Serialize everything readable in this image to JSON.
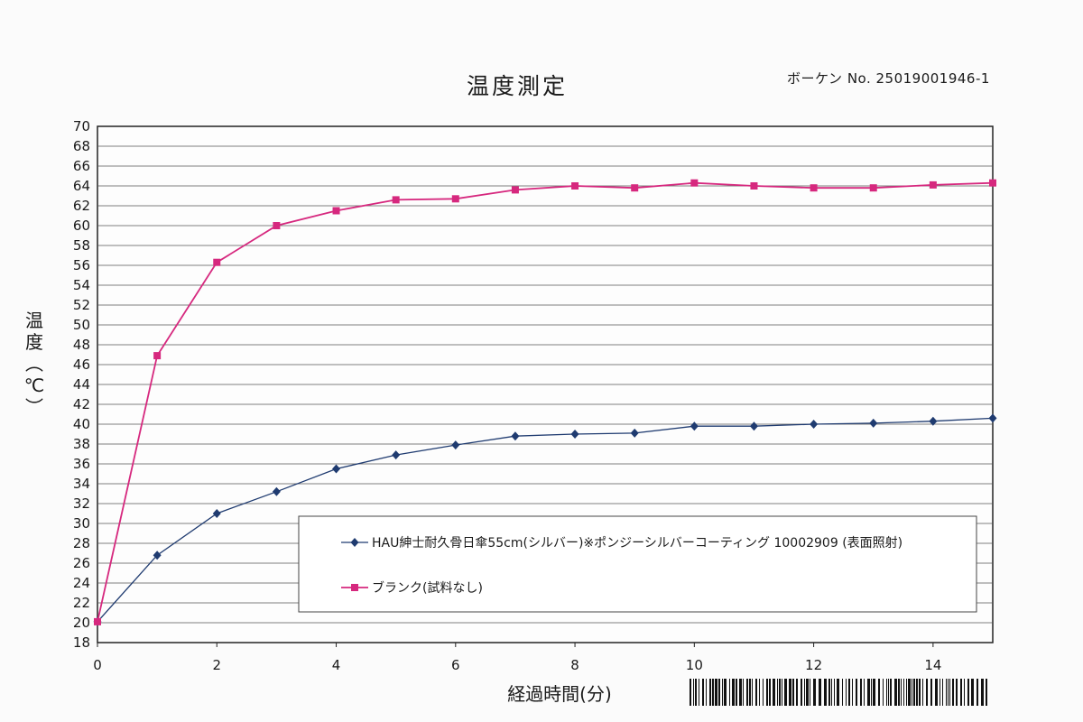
{
  "header": {
    "title": "温度測定",
    "report_no": "ボーケン No.  25019001946-1"
  },
  "chart_data": {
    "type": "line",
    "title": "温度測定",
    "xlabel": "経過時間(分)",
    "ylabel": "温度(℃)",
    "xlim": [
      0,
      15
    ],
    "ylim": [
      18,
      70
    ],
    "x_ticks": [
      0,
      2,
      4,
      6,
      8,
      10,
      12,
      14
    ],
    "y_ticks": [
      18,
      20,
      22,
      24,
      26,
      28,
      30,
      32,
      34,
      36,
      38,
      40,
      42,
      44,
      46,
      48,
      50,
      52,
      54,
      56,
      58,
      60,
      62,
      64,
      66,
      68,
      70
    ],
    "grid": "horizontal",
    "legend_placement": "bottom-right inside",
    "x": [
      0,
      1,
      2,
      3,
      4,
      5,
      6,
      7,
      8,
      9,
      10,
      11,
      12,
      13,
      14,
      15
    ],
    "series": [
      {
        "name": "HAU紳士耐久骨日傘55cm(シルバー)※ポンジーシルバーコーティング 10002909 (表面照射)",
        "color": "#1f3b70",
        "marker": "diamond",
        "values": [
          20.1,
          26.8,
          31.0,
          33.2,
          35.5,
          36.9,
          37.9,
          38.8,
          39.0,
          39.1,
          39.8,
          39.8,
          40.0,
          40.1,
          40.3,
          40.6
        ]
      },
      {
        "name": "ブランク(試料なし)",
        "color": "#d6287e",
        "marker": "square",
        "values": [
          20.1,
          46.9,
          56.3,
          60.0,
          61.5,
          62.6,
          62.7,
          63.6,
          64.0,
          63.8,
          64.3,
          64.0,
          63.8,
          63.8,
          64.1,
          64.3
        ]
      }
    ]
  }
}
